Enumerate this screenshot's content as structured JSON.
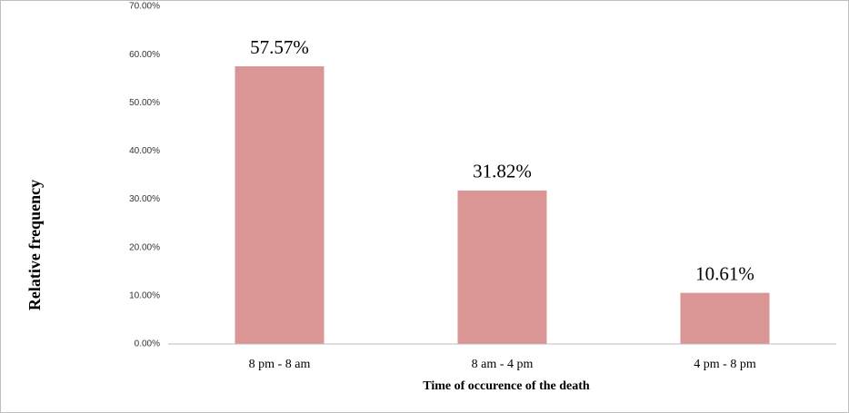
{
  "chart_data": {
    "type": "bar",
    "x_label": "Time of occurence of the death",
    "y_label": "Relative frequency",
    "categories": [
      "8 pm - 8 am",
      "8 am - 4 pm",
      "4 pm - 8 pm"
    ],
    "values": [
      57.57,
      31.82,
      10.61
    ],
    "value_labels": [
      "57.57%",
      "31.82%",
      "10.61%"
    ],
    "color": "#d99694",
    "ylim": [
      0,
      70
    ],
    "yticks": [
      {
        "value": 0,
        "label": "0.00%"
      },
      {
        "value": 10,
        "label": "10.00%"
      },
      {
        "value": 20,
        "label": "20.00%"
      },
      {
        "value": 30,
        "label": "30.00%"
      },
      {
        "value": 40,
        "label": "40.00%"
      },
      {
        "value": 50,
        "label": "50.00%"
      },
      {
        "value": 60,
        "label": "60.00%"
      },
      {
        "value": 70,
        "label": "70.00%"
      }
    ],
    "grid": false
  }
}
